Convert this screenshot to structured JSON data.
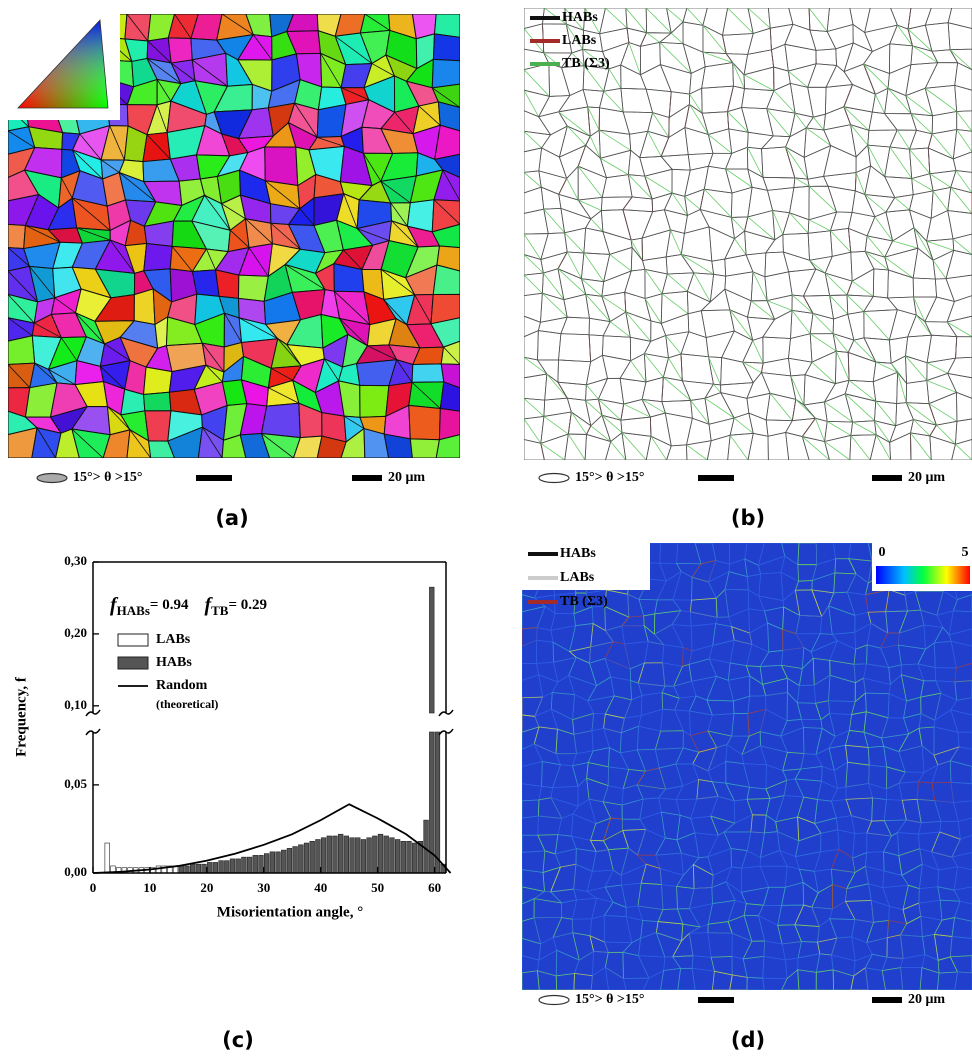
{
  "panels": {
    "a": {
      "caption": "(a)",
      "scale_legend": "15°> θ >15°",
      "scale_bar": "20 μm"
    },
    "b": {
      "caption": "(b)",
      "scale_legend": "15°> θ >15°",
      "scale_bar": "20 μm",
      "legend": [
        {
          "name": "HABs",
          "color": "#111111"
        },
        {
          "name": "LABs",
          "color": "#a52a2a"
        },
        {
          "name": "TB (Σ3)",
          "color": "#4caf50"
        }
      ]
    },
    "d": {
      "caption": "(d)",
      "scale_legend": "15°> θ >15°",
      "scale_bar": "20 μm",
      "legend": [
        {
          "name": "HABs",
          "color": "#111111"
        },
        {
          "name": "LABs",
          "color": "#cccccc"
        },
        {
          "name": "TB (Σ3)",
          "color": "#a52a2a"
        }
      ],
      "colorbar": [
        "0",
        "5"
      ]
    }
  },
  "chart_data": {
    "type": "histogram",
    "caption": "(c)",
    "xlabel": "Misorientation angle, °",
    "ylabel": "Frequency, f",
    "annotations": [
      {
        "symbol": "f",
        "subscript": "HABs",
        "text": "= 0.94"
      },
      {
        "symbol": "f",
        "subscript": "TB",
        "text": "= 0.29"
      }
    ],
    "xlim": [
      0,
      62
    ],
    "xticks": [
      0,
      10,
      20,
      30,
      40,
      50,
      60
    ],
    "ylim": [
      0,
      0.3
    ],
    "ybreak": [
      0.08,
      0.09
    ],
    "yticks": [
      {
        "value": 0,
        "label": "0,00"
      },
      {
        "value": 0.05,
        "label": "0,05"
      },
      {
        "value": 0.1,
        "label": "0,10"
      },
      {
        "value": 0.2,
        "label": "0,20"
      },
      {
        "value": 0.3,
        "label": "0,30"
      }
    ],
    "series": [
      {
        "name": "LABs",
        "color": "#ffffff",
        "bins": [
          2,
          3,
          4,
          5,
          6,
          7,
          8,
          9,
          10,
          11,
          12,
          13,
          14,
          15
        ],
        "values": [
          0.017,
          0.004,
          0.003,
          0.003,
          0.003,
          0.003,
          0.003,
          0.003,
          0.003,
          0.004,
          0.004,
          0.004,
          0.004
        ]
      },
      {
        "name": "HABs",
        "color": "#555555",
        "bins": [
          15,
          16,
          17,
          18,
          19,
          20,
          21,
          22,
          23,
          24,
          25,
          26,
          27,
          28,
          29,
          30,
          31,
          32,
          33,
          34,
          35,
          36,
          37,
          38,
          39,
          40,
          41,
          42,
          43,
          44,
          45,
          46,
          47,
          48,
          49,
          50,
          51,
          52,
          53,
          54,
          55,
          56,
          57,
          58,
          59,
          60,
          61,
          62
        ],
        "values": [
          0.004,
          0.004,
          0.005,
          0.005,
          0.005,
          0.006,
          0.006,
          0.007,
          0.007,
          0.008,
          0.008,
          0.009,
          0.009,
          0.01,
          0.01,
          0.011,
          0.012,
          0.012,
          0.013,
          0.014,
          0.015,
          0.016,
          0.017,
          0.018,
          0.019,
          0.02,
          0.021,
          0.021,
          0.022,
          0.021,
          0.02,
          0.02,
          0.019,
          0.02,
          0.021,
          0.022,
          0.021,
          0.02,
          0.019,
          0.018,
          0.018,
          0.017,
          0.018,
          0.03,
          0.265,
          0.08,
          0.005
        ]
      },
      {
        "name": "Random (theoretical)",
        "type": "line",
        "color": "#000000",
        "x": [
          0,
          5,
          10,
          15,
          20,
          25,
          30,
          35,
          40,
          45,
          50,
          55,
          60,
          62.8
        ],
        "values": [
          0,
          0.0007,
          0.002,
          0.004,
          0.007,
          0.011,
          0.016,
          0.022,
          0.03,
          0.039,
          0.031,
          0.022,
          0.01,
          0
        ]
      }
    ]
  }
}
